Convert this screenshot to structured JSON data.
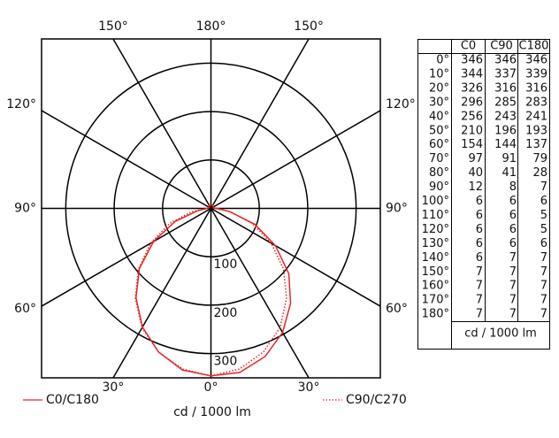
{
  "chart_data": {
    "type": "polar",
    "angles": [
      {
        "value": 0,
        "label": "0°"
      },
      {
        "value": 10,
        "label": "10°"
      },
      {
        "value": 20,
        "label": "20°"
      },
      {
        "value": 30,
        "label": "30°"
      },
      {
        "value": 40,
        "label": "40°"
      },
      {
        "value": 50,
        "label": "50°"
      },
      {
        "value": 60,
        "label": "60°"
      },
      {
        "value": 70,
        "label": "70°"
      },
      {
        "value": 80,
        "label": "80°"
      },
      {
        "value": 90,
        "label": "90°"
      },
      {
        "value": 100,
        "label": "100°"
      },
      {
        "value": 110,
        "label": "110°"
      },
      {
        "value": 120,
        "label": "120°"
      },
      {
        "value": 130,
        "label": "130°"
      },
      {
        "value": 140,
        "label": "140°"
      },
      {
        "value": 150,
        "label": "150°"
      },
      {
        "value": 160,
        "label": "160°"
      },
      {
        "value": 170,
        "label": "170°"
      },
      {
        "value": 180,
        "label": "180°"
      }
    ],
    "columns": [
      {
        "name": "C0",
        "values": [
          346,
          344,
          326,
          296,
          256,
          210,
          154,
          97,
          40,
          12,
          6,
          6,
          6,
          6,
          6,
          7,
          7,
          7,
          7
        ]
      },
      {
        "name": "C90",
        "values": [
          346,
          337,
          316,
          285,
          243,
          196,
          144,
          91,
          41,
          8,
          6,
          6,
          6,
          6,
          7,
          7,
          7,
          7,
          7
        ]
      },
      {
        "name": "C180",
        "values": [
          346,
          339,
          316,
          283,
          241,
          193,
          137,
          79,
          28,
          7,
          6,
          5,
          5,
          6,
          7,
          7,
          7,
          7,
          7
        ]
      }
    ],
    "series": [
      {
        "name": "C0/C180",
        "color": "#e8262a",
        "dash": "solid"
      },
      {
        "name": "C90/C270",
        "color": "#e8262a",
        "dash": "dotted"
      }
    ],
    "angle_ticks": [
      {
        "value": 0,
        "label": "0°"
      },
      {
        "value": 30,
        "label": "30°"
      },
      {
        "value": 60,
        "label": "60°"
      },
      {
        "value": 90,
        "label": "90°"
      },
      {
        "value": 120,
        "label": "120°"
      },
      {
        "value": 150,
        "label": "150°"
      },
      {
        "value": 180,
        "label": "180°"
      }
    ],
    "rlim": [
      0,
      350
    ],
    "rticks": [
      100,
      200,
      300
    ],
    "x_label": "cd / 1000 lm",
    "table_note": "cd / 1000 lm"
  }
}
